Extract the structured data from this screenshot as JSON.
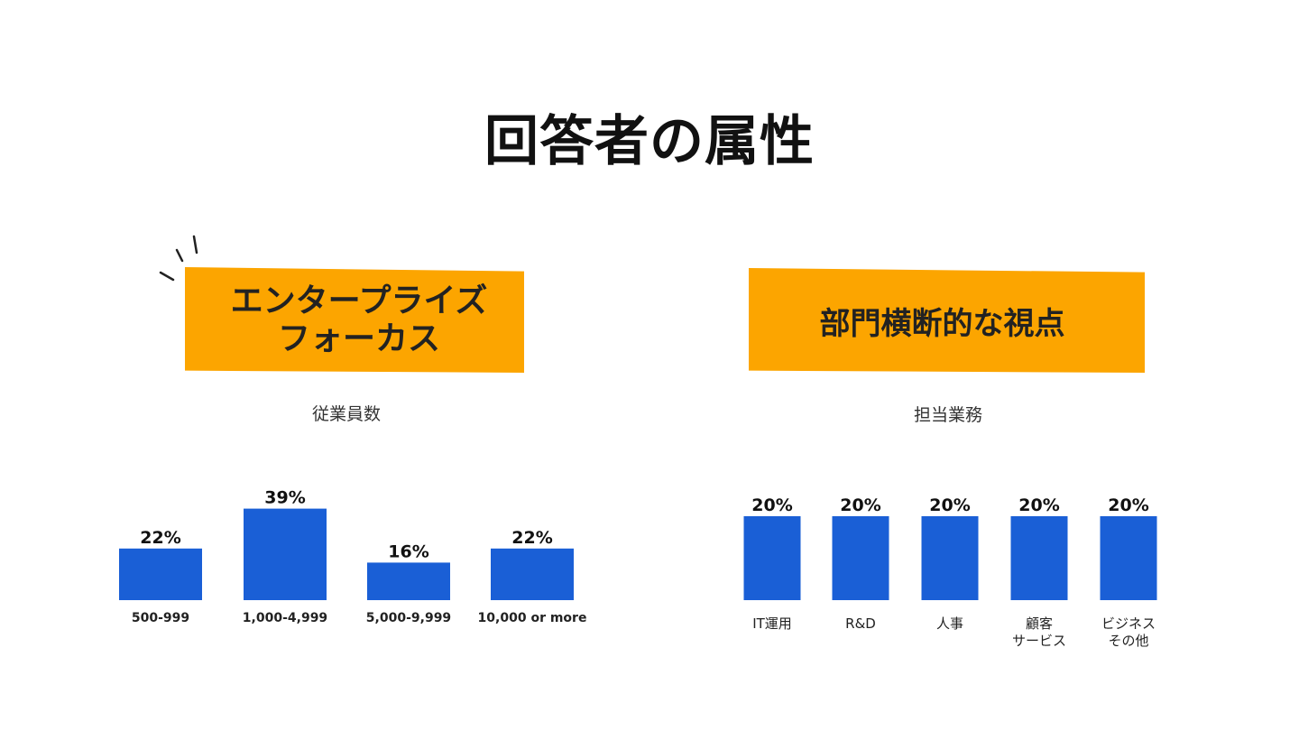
{
  "title": "回答者の属性",
  "left_panel": {
    "banner": "エンタープライズ\nフォーカス",
    "subtitle": "従業員数"
  },
  "right_panel": {
    "banner": "部門横断的な視点",
    "subtitle": "担当業務"
  },
  "colors": {
    "accent": "#fca500",
    "bar": "#1a5fd6"
  },
  "chart_data": [
    {
      "type": "bar",
      "title": "従業員数",
      "categories": [
        "500-999",
        "1,000-4,999",
        "5,000-9,999",
        "10,000 or more"
      ],
      "values": [
        22,
        39,
        16,
        22
      ],
      "value_labels": [
        "22%",
        "39%",
        "16%",
        "22%"
      ],
      "unit": "%",
      "ylim": [
        0,
        40
      ],
      "grid": false
    },
    {
      "type": "bar",
      "title": "担当業務",
      "categories": [
        "IT運用",
        "R&D",
        "人事",
        "顧客\nサービス",
        "ビジネス\nその他"
      ],
      "values": [
        20,
        20,
        20,
        20,
        20
      ],
      "value_labels": [
        "20%",
        "20%",
        "20%",
        "20%",
        "20%"
      ],
      "unit": "%",
      "ylim": [
        0,
        20
      ],
      "grid": false
    }
  ]
}
